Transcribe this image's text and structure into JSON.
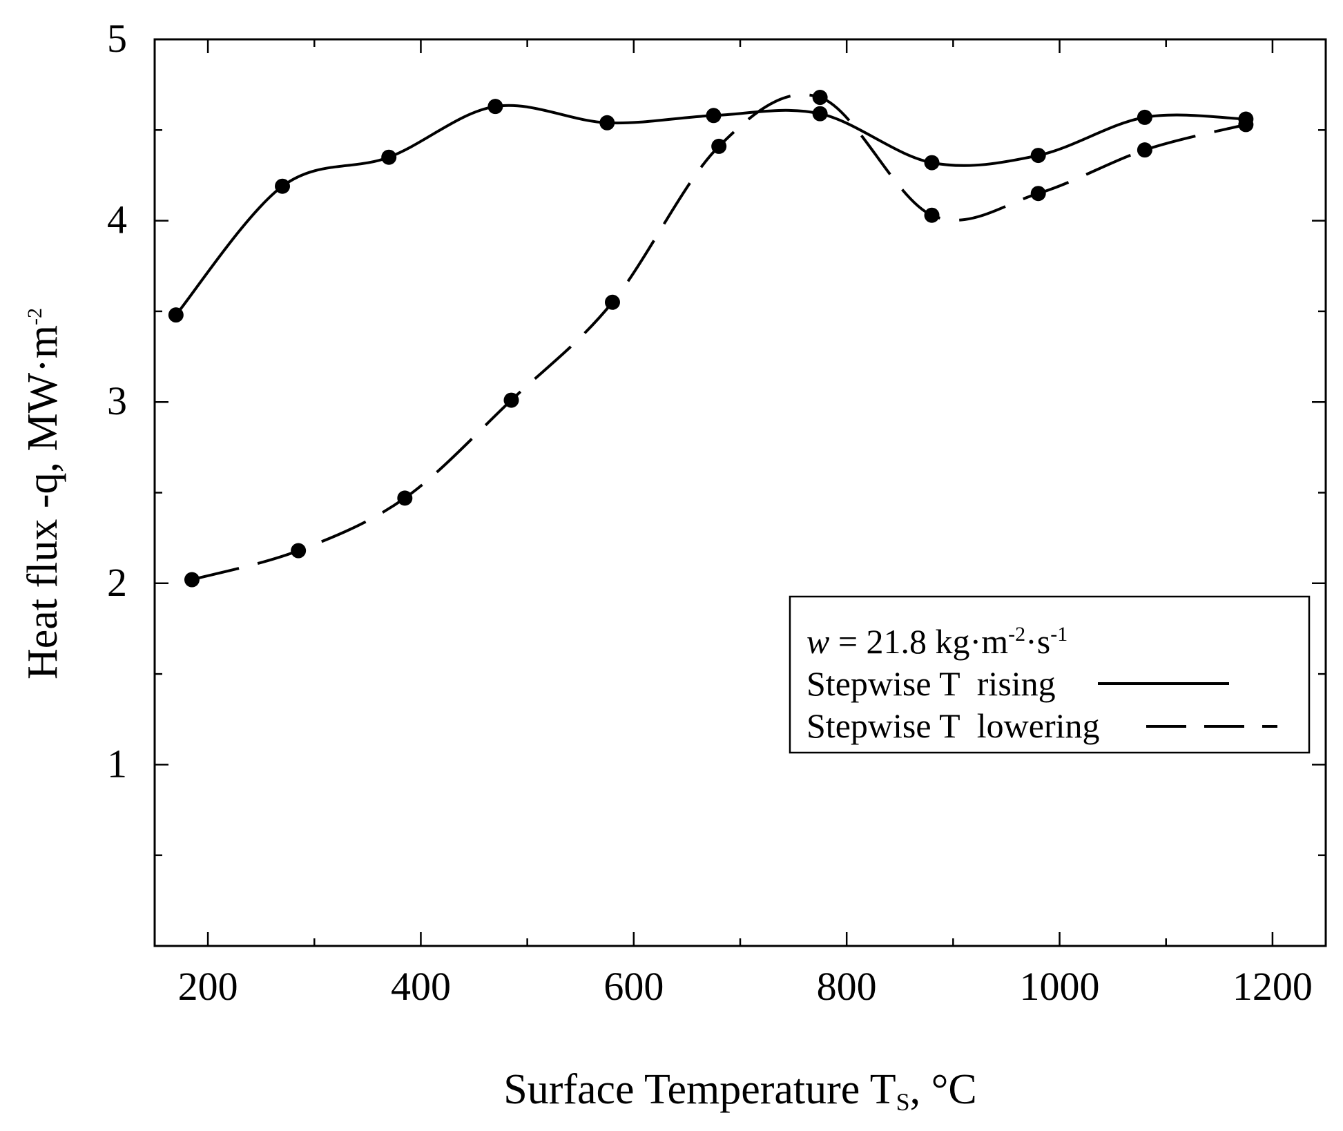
{
  "chart_data": {
    "type": "line",
    "xlabel": "Surface Temperature",
    "xlabel_symbol": "T",
    "xlabel_subscript": "S",
    "xlabel_unit": ", °C",
    "ylabel": "Heat flux -q, MW·m",
    "ylabel_exponent": "-2",
    "xlim": [
      150,
      1250
    ],
    "ylim": [
      0,
      5
    ],
    "x_ticks": [
      200,
      400,
      600,
      800,
      1000,
      1200
    ],
    "x_minor_ticks": [
      300,
      500,
      700,
      900,
      1100
    ],
    "y_ticks": [
      1,
      2,
      3,
      4,
      5
    ],
    "y_minor_ticks": [
      0.5,
      1.5,
      2.5,
      3.5,
      4.5
    ],
    "legend": {
      "position": "center-right",
      "parameter": {
        "symbol": "w",
        "text": " = 21.8 kg·m",
        "exp1": "-2",
        "mid": "·s",
        "exp2": "-1"
      },
      "entries": [
        "Stepwise T  rising",
        "Stepwise T  lowering"
      ]
    },
    "series": [
      {
        "name": "Stepwise T rising",
        "style": "solid",
        "x": [
          170,
          270,
          370,
          470,
          575,
          675,
          775,
          880,
          980,
          1080,
          1175
        ],
        "y": [
          3.48,
          4.19,
          4.35,
          4.63,
          4.54,
          4.58,
          4.59,
          4.32,
          4.36,
          4.57,
          4.56
        ]
      },
      {
        "name": "Stepwise T lowering",
        "style": "dashed",
        "x": [
          185,
          285,
          385,
          485,
          580,
          680,
          775,
          880,
          980,
          1080,
          1175
        ],
        "y": [
          2.02,
          2.18,
          2.47,
          3.01,
          3.55,
          4.41,
          4.68,
          4.03,
          4.15,
          4.39,
          4.53
        ]
      }
    ]
  }
}
